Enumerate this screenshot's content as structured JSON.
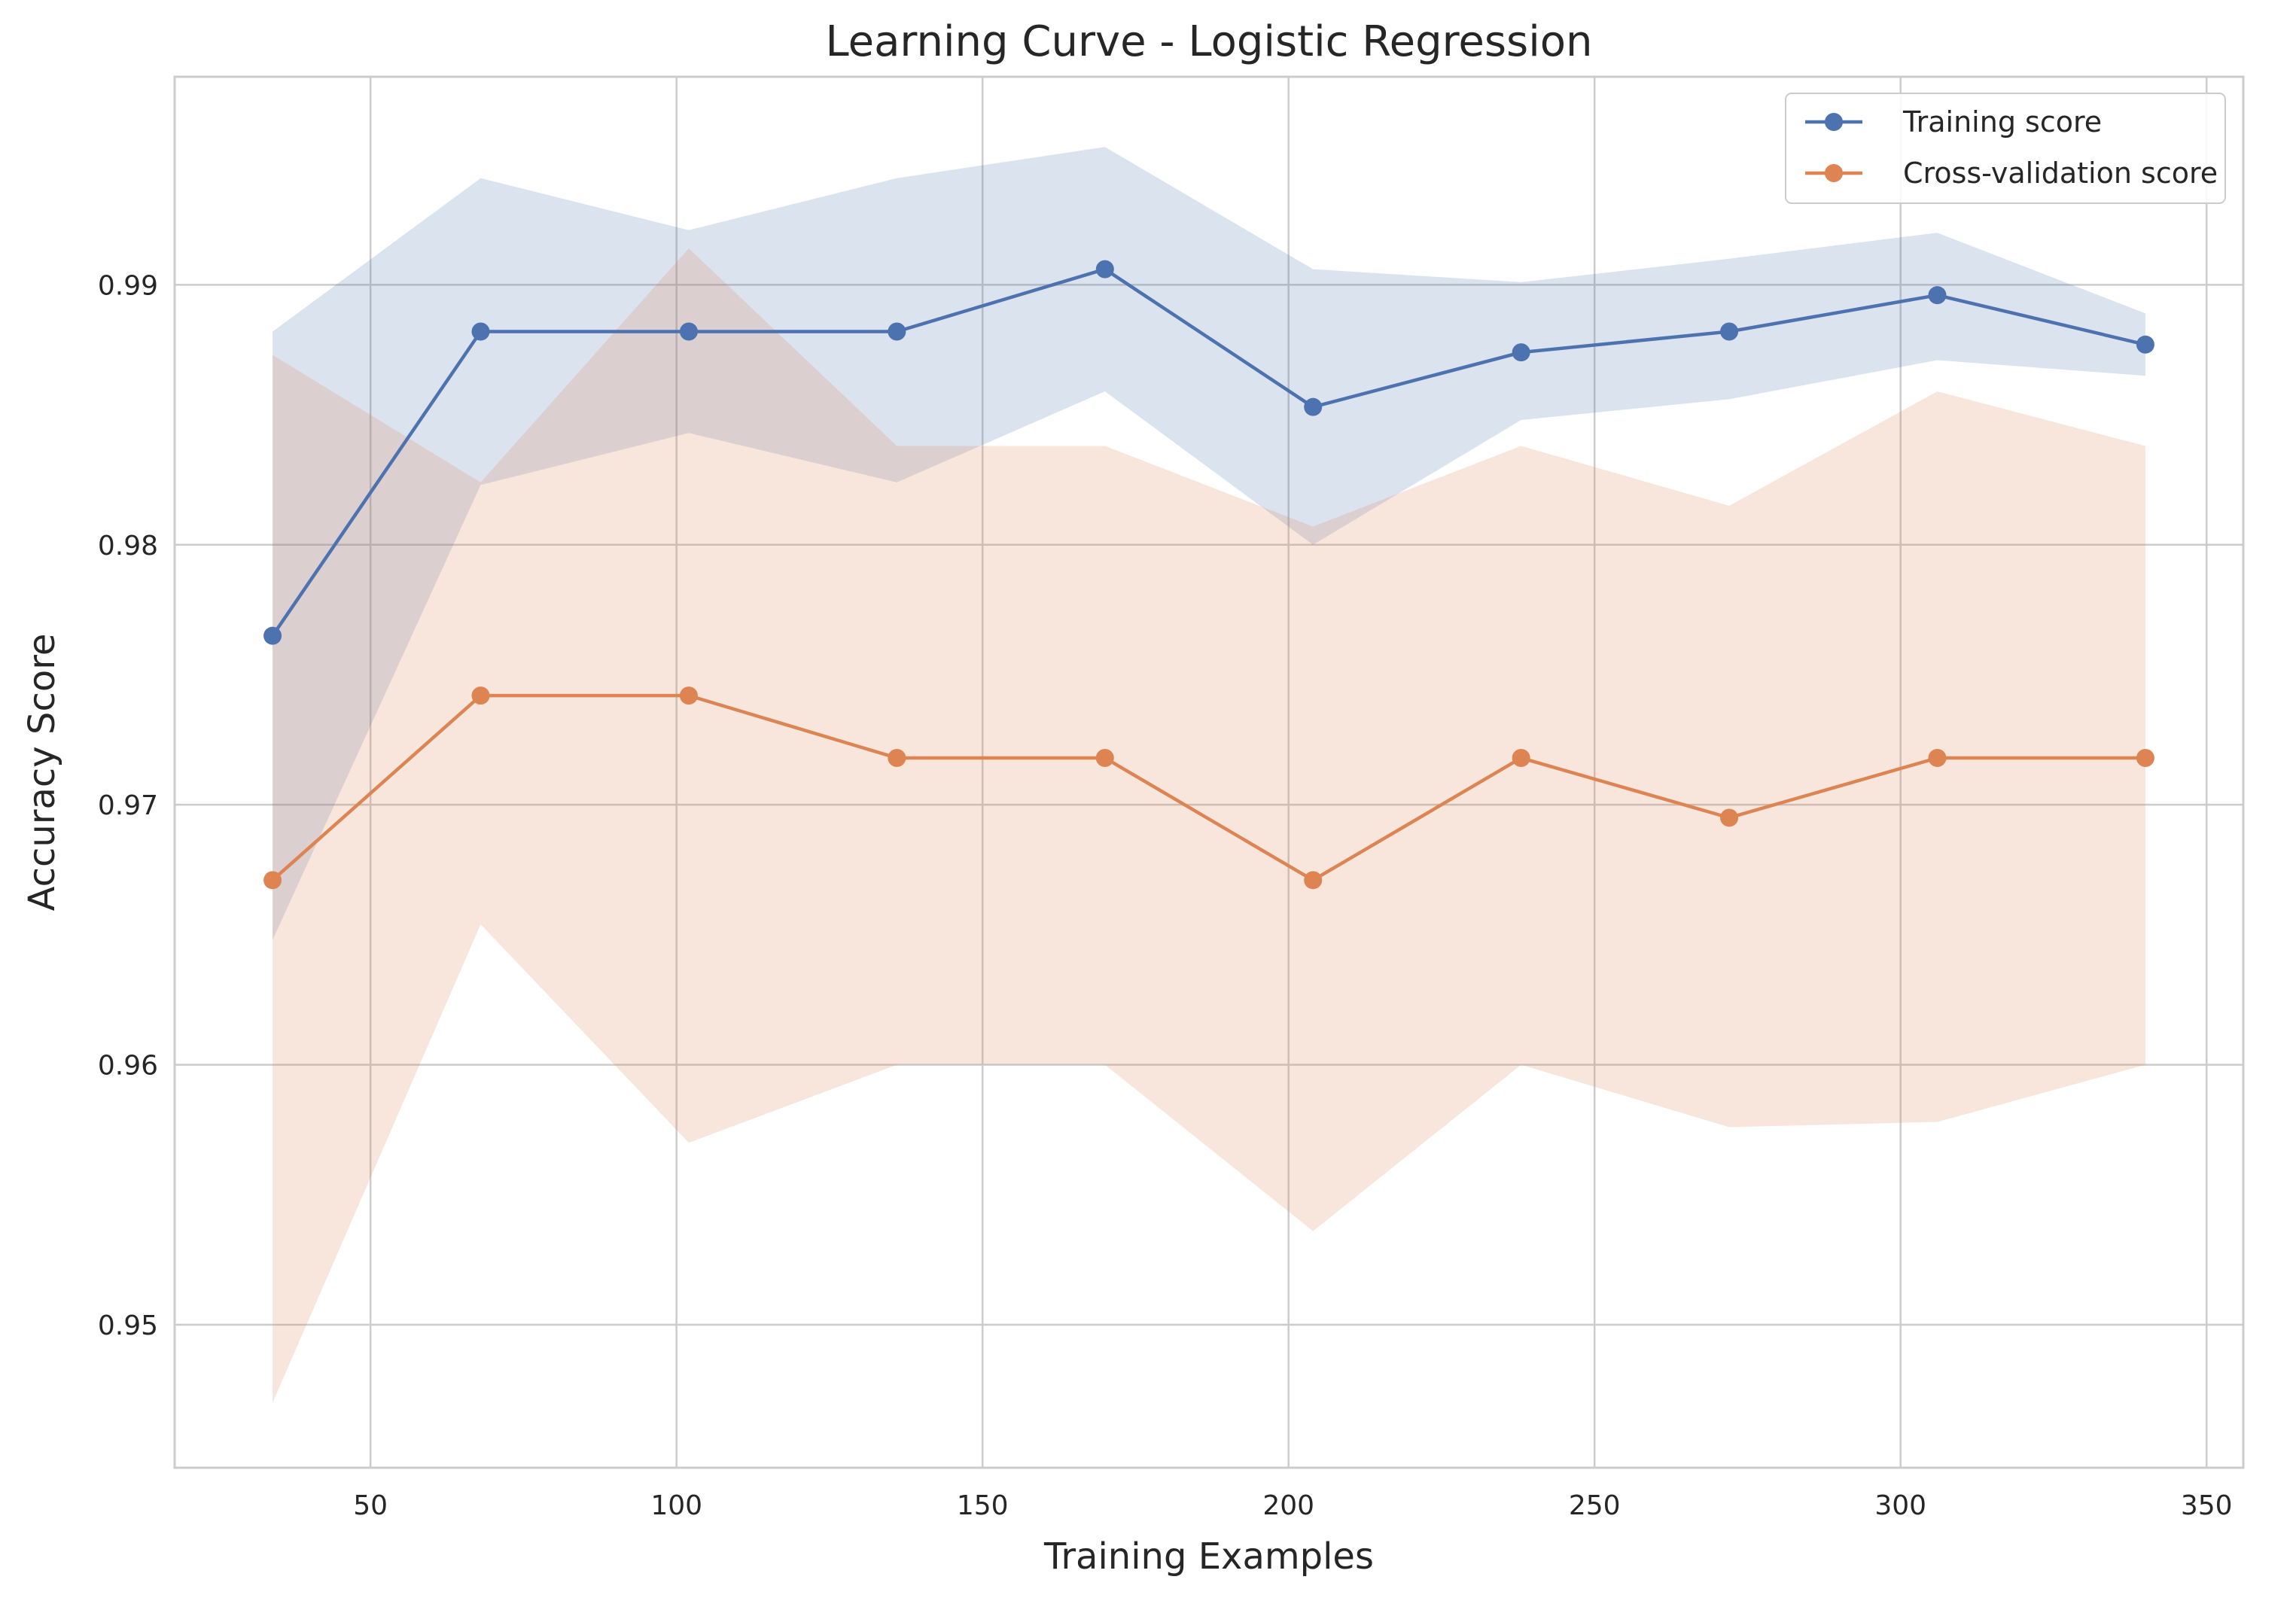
{
  "chart_data": {
    "type": "line",
    "title": "Learning Curve - Logistic Regression",
    "xlabel": "Training Examples",
    "ylabel": "Accuracy Score",
    "xlim": [
      18,
      356
    ],
    "ylim": [
      0.9445,
      0.998
    ],
    "grid": true,
    "legend_position": "top-right",
    "x_ticks": [
      50,
      100,
      150,
      200,
      250,
      300,
      350
    ],
    "x_tick_labels": [
      "50",
      "100",
      "150",
      "200",
      "250",
      "300",
      "350"
    ],
    "y_ticks": [
      0.95,
      0.96,
      0.97,
      0.98,
      0.99
    ],
    "y_tick_labels": [
      "0.95",
      "0.96",
      "0.97",
      "0.98",
      "0.99"
    ],
    "x": [
      34,
      68,
      102,
      136,
      170,
      204,
      238,
      272,
      306,
      340
    ],
    "series": [
      {
        "name": "Training score",
        "color": "#4c72b0",
        "band_color": "#4c72b0",
        "values": [
          0.9765,
          0.9882,
          0.9882,
          0.9882,
          0.9906,
          0.9853,
          0.9874,
          0.9882,
          0.9896,
          0.9877
        ],
        "band_lower": [
          0.9648,
          0.9823,
          0.9843,
          0.9824,
          0.9859,
          0.98,
          0.9848,
          0.9856,
          0.9871,
          0.9865
        ],
        "band_upper": [
          0.9882,
          0.9941,
          0.9921,
          0.9941,
          0.9953,
          0.9906,
          0.9901,
          0.991,
          0.992,
          0.9889
        ]
      },
      {
        "name": "Cross-validation score",
        "color": "#dd8452",
        "band_color": "#dd8452",
        "values": [
          0.9671,
          0.9742,
          0.9742,
          0.9718,
          0.9718,
          0.9671,
          0.9718,
          0.9695,
          0.9718,
          0.9718
        ],
        "band_lower": [
          0.947,
          0.9654,
          0.957,
          0.96,
          0.96,
          0.9536,
          0.96,
          0.9576,
          0.9578,
          0.96
        ],
        "band_upper": [
          0.9873,
          0.9824,
          0.9914,
          0.9838,
          0.9838,
          0.9807,
          0.9838,
          0.9815,
          0.9859,
          0.9838
        ]
      }
    ]
  }
}
